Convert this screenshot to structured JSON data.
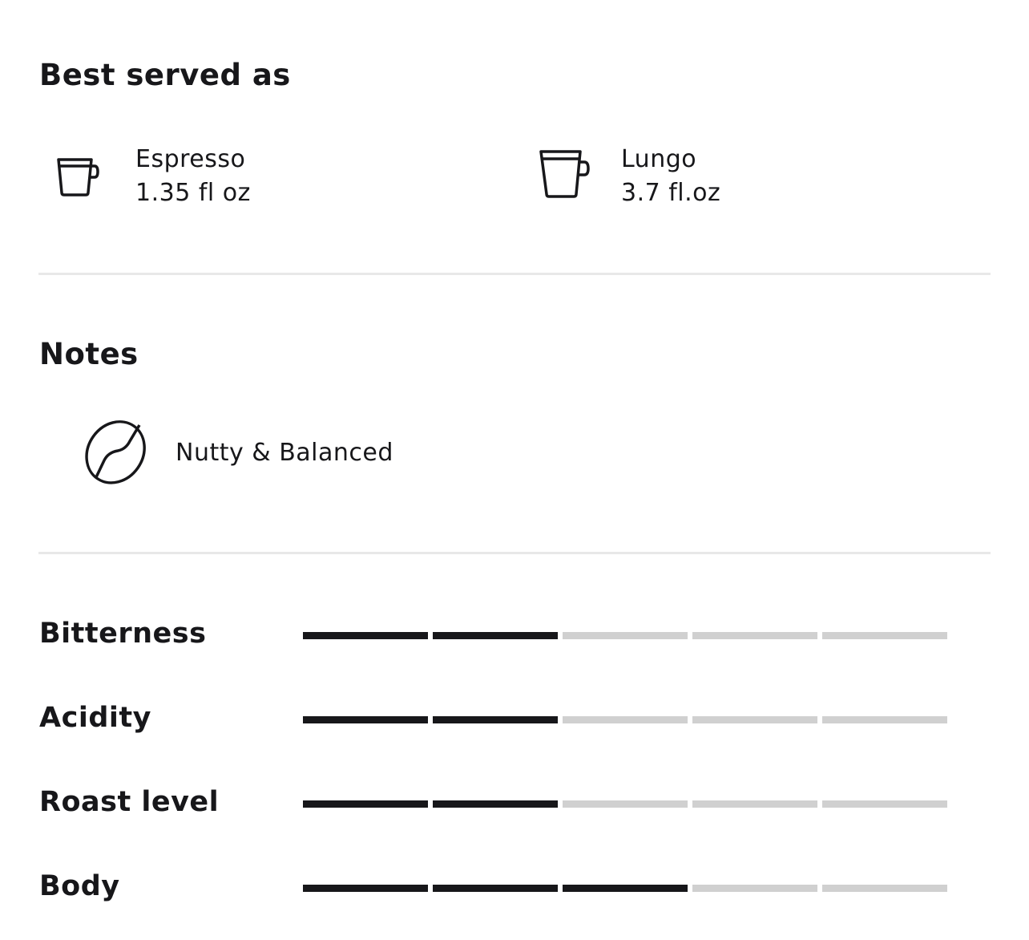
{
  "served": {
    "title": "Best served as",
    "items": [
      {
        "icon": "espresso-cup-icon",
        "name": "Espresso",
        "volume": "1.35 fl oz"
      },
      {
        "icon": "lungo-cup-icon",
        "name": "Lungo",
        "volume": "3.7 fl.oz"
      }
    ]
  },
  "notes": {
    "title": "Notes",
    "items": [
      {
        "icon": "coffee-bean-icon",
        "label": "Nutty & Balanced"
      }
    ]
  },
  "ratings": {
    "max": 5,
    "active_color": "#17171a",
    "inactive_color": "#d0d0d0",
    "items": [
      {
        "label": "Bitterness",
        "value": 2
      },
      {
        "label": "Acidity",
        "value": 2
      },
      {
        "label": "Roast level",
        "value": 2
      },
      {
        "label": "Body",
        "value": 3
      }
    ]
  }
}
